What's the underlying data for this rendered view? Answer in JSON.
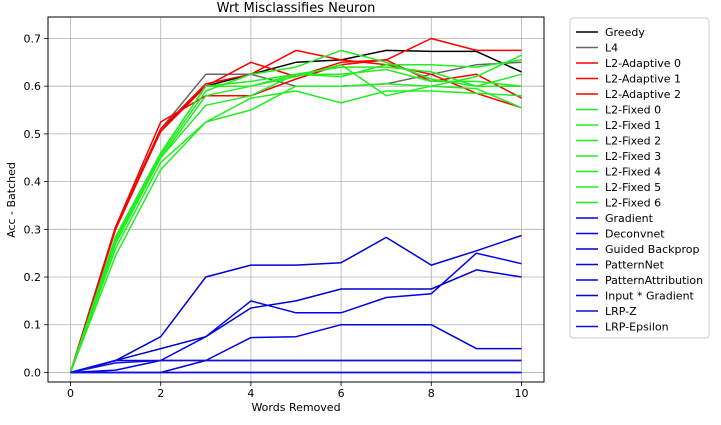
{
  "chart_data": {
    "type": "line",
    "title": "Wrt Misclassifies Neuron",
    "xlabel": "Words Removed",
    "ylabel": "Acc - Batched",
    "xlim": [
      -0.5,
      10.5
    ],
    "ylim": [
      -0.02,
      0.745
    ],
    "xticks": [
      0,
      2,
      4,
      6,
      8,
      10
    ],
    "yticks": [
      0.0,
      0.1,
      0.2,
      0.3,
      0.4,
      0.5,
      0.6,
      0.7
    ],
    "ytick_labels": [
      "0.0",
      "0.1",
      "0.2",
      "0.3",
      "0.4",
      "0.5",
      "0.6",
      "0.7"
    ],
    "grid": true,
    "legend_position": "outside-right",
    "x": [
      0,
      1,
      2,
      3,
      4,
      5,
      6,
      7,
      8,
      9,
      10
    ],
    "series": [
      {
        "name": "Greedy",
        "color": "#000000",
        "values": [
          0,
          0.305,
          0.51,
          0.6,
          0.625,
          0.65,
          0.655,
          0.675,
          0.673,
          0.673,
          0.63
        ]
      },
      {
        "name": "L4",
        "color": "#666666",
        "values": [
          0,
          0.305,
          0.51,
          0.625,
          0.625,
          0.6,
          0.6,
          0.605,
          0.625,
          0.645,
          0.65
        ]
      },
      {
        "name": "L2-Adaptive 0",
        "color": "#ff0000",
        "values": [
          0,
          0.305,
          0.525,
          0.58,
          0.58,
          0.615,
          0.645,
          0.655,
          0.7,
          0.675,
          0.675
        ]
      },
      {
        "name": "L2-Adaptive 1",
        "color": "#ff0000",
        "values": [
          0,
          0.3,
          0.505,
          0.6,
          0.65,
          0.62,
          0.65,
          0.655,
          0.61,
          0.625,
          0.575
        ]
      },
      {
        "name": "L2-Adaptive 2",
        "color": "#ff0000",
        "values": [
          0,
          0.3,
          0.51,
          0.605,
          0.625,
          0.675,
          0.655,
          0.645,
          0.625,
          0.585,
          0.555
        ]
      },
      {
        "name": "L2-Fixed 0",
        "color": "#22ee22",
        "values": [
          0,
          0.245,
          0.425,
          0.525,
          0.55,
          0.6,
          0.6,
          0.605,
          0.6,
          0.62,
          0.665
        ]
      },
      {
        "name": "L2-Fixed 1",
        "color": "#22ee22",
        "values": [
          0,
          0.26,
          0.44,
          0.525,
          0.575,
          0.59,
          0.565,
          0.59,
          0.59,
          0.585,
          0.58
        ]
      },
      {
        "name": "L2-Fixed 2",
        "color": "#22ee22",
        "values": [
          0,
          0.27,
          0.45,
          0.56,
          0.58,
          0.625,
          0.62,
          0.645,
          0.645,
          0.64,
          0.655
        ]
      },
      {
        "name": "L2-Fixed 3",
        "color": "#22ee22",
        "values": [
          0,
          0.275,
          0.45,
          0.58,
          0.6,
          0.625,
          0.64,
          0.64,
          0.63,
          0.6,
          0.625
        ]
      },
      {
        "name": "L2-Fixed 4",
        "color": "#22ee22",
        "values": [
          0,
          0.28,
          0.455,
          0.59,
          0.625,
          0.64,
          0.675,
          0.65,
          0.615,
          0.6,
          0.6
        ]
      },
      {
        "name": "L2-Fixed 5",
        "color": "#22ee22",
        "values": [
          0,
          0.28,
          0.46,
          0.6,
          0.6,
          0.62,
          0.645,
          0.58,
          0.6,
          0.595,
          0.555
        ]
      },
      {
        "name": "L2-Fixed 6",
        "color": "#22ee22",
        "values": [
          0,
          0.285,
          0.46,
          0.6,
          0.61,
          0.625,
          0.625,
          0.635,
          0.61,
          0.61,
          0.6
        ]
      },
      {
        "name": "Gradient",
        "color": "#0000dd",
        "values": [
          0,
          0.025,
          0.075,
          0.2,
          0.225,
          0.225,
          0.23,
          0.283,
          0.225,
          0.255,
          0.287
        ]
      },
      {
        "name": "Deconvnet",
        "color": "#0000ee",
        "values": [
          0,
          0.005,
          0.025,
          0.075,
          0.15,
          0.125,
          0.125,
          0.157,
          0.165,
          0.25,
          0.228
        ]
      },
      {
        "name": "Guided Backprop",
        "color": "#0000cc",
        "values": [
          0,
          0.025,
          0.05,
          0.075,
          0.135,
          0.15,
          0.175,
          0.175,
          0.175,
          0.215,
          0.2
        ]
      },
      {
        "name": "PatternNet",
        "color": "#0000ff",
        "values": [
          0,
          0.025,
          0.025,
          0.025,
          0.025,
          0.025,
          0.025,
          0.025,
          0.025,
          0.025,
          0.025
        ]
      },
      {
        "name": "PatternAttribution",
        "color": "#0000ee",
        "values": [
          0,
          0.0,
          0.0,
          0.0,
          0.0,
          0.0,
          0.0,
          0.0,
          0.0,
          0.0,
          0.0
        ]
      },
      {
        "name": "Input * Gradient",
        "color": "#0000dd",
        "values": [
          0,
          0.0,
          0.0,
          0.025,
          0.073,
          0.075,
          0.1,
          0.1,
          0.1,
          0.05,
          0.05
        ]
      },
      {
        "name": "LRP-Z",
        "color": "#1111cc",
        "values": [
          0,
          0.02,
          0.025,
          0.025,
          0.025,
          0.025,
          0.025,
          0.025,
          0.025,
          0.025,
          0.025
        ]
      },
      {
        "name": "LRP-Epsilon",
        "color": "#1111dd",
        "values": [
          0,
          0.0,
          0.0,
          0.0,
          0.0,
          0.0,
          0.0,
          0.0,
          0.0,
          0.0,
          0.0
        ]
      }
    ]
  }
}
